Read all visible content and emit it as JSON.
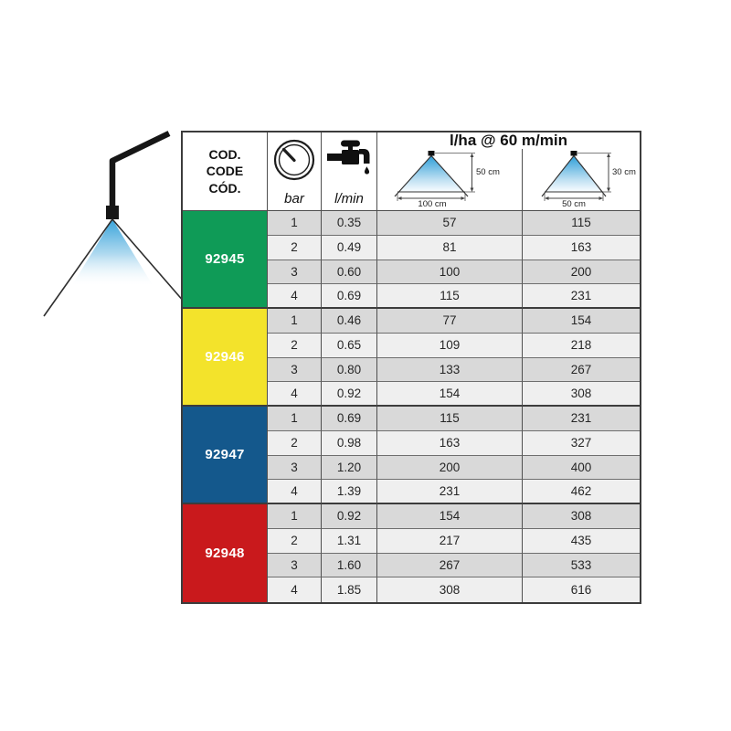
{
  "colors": {
    "green": "#0f9b57",
    "yellow": "#f3e32b",
    "blue": "#14588c",
    "red": "#c9191c",
    "row_dark": "#d9d9d9",
    "row_light": "#efefef",
    "spray_blue": "#2d9ed8"
  },
  "illustration": {
    "name": "spray-nozzle-with-cone"
  },
  "table": {
    "header": {
      "code_lines": [
        "COD.",
        "CODE",
        "CÓD."
      ],
      "pressure_icon": "gauge-icon",
      "pressure_unit": "bar",
      "flow_icon": "tap-icon",
      "flow_unit": "l/min",
      "rate_title": "l/ha @ 60 m/min",
      "diagram_wide": {
        "height_label": "50 cm",
        "width_label": "100 cm"
      },
      "diagram_narrow": {
        "height_label": "30 cm",
        "width_label": "50 cm"
      }
    },
    "groups": [
      {
        "code": "92945",
        "color": "#0f9b57",
        "rows": [
          {
            "bar": "1",
            "lmin": "0.35",
            "lha_100": "57",
            "lha_50": "115"
          },
          {
            "bar": "2",
            "lmin": "0.49",
            "lha_100": "81",
            "lha_50": "163"
          },
          {
            "bar": "3",
            "lmin": "0.60",
            "lha_100": "100",
            "lha_50": "200"
          },
          {
            "bar": "4",
            "lmin": "0.69",
            "lha_100": "115",
            "lha_50": "231"
          }
        ]
      },
      {
        "code": "92946",
        "color": "#f3e32b",
        "rows": [
          {
            "bar": "1",
            "lmin": "0.46",
            "lha_100": "77",
            "lha_50": "154"
          },
          {
            "bar": "2",
            "lmin": "0.65",
            "lha_100": "109",
            "lha_50": "218"
          },
          {
            "bar": "3",
            "lmin": "0.80",
            "lha_100": "133",
            "lha_50": "267"
          },
          {
            "bar": "4",
            "lmin": "0.92",
            "lha_100": "154",
            "lha_50": "308"
          }
        ]
      },
      {
        "code": "92947",
        "color": "#14588c",
        "rows": [
          {
            "bar": "1",
            "lmin": "0.69",
            "lha_100": "115",
            "lha_50": "231"
          },
          {
            "bar": "2",
            "lmin": "0.98",
            "lha_100": "163",
            "lha_50": "327"
          },
          {
            "bar": "3",
            "lmin": "1.20",
            "lha_100": "200",
            "lha_50": "400"
          },
          {
            "bar": "4",
            "lmin": "1.39",
            "lha_100": "231",
            "lha_50": "462"
          }
        ]
      },
      {
        "code": "92948",
        "color": "#c9191c",
        "rows": [
          {
            "bar": "1",
            "lmin": "0.92",
            "lha_100": "154",
            "lha_50": "308"
          },
          {
            "bar": "2",
            "lmin": "1.31",
            "lha_100": "217",
            "lha_50": "435"
          },
          {
            "bar": "3",
            "lmin": "1.60",
            "lha_100": "267",
            "lha_50": "533"
          },
          {
            "bar": "4",
            "lmin": "1.85",
            "lha_100": "308",
            "lha_50": "616"
          }
        ]
      }
    ]
  }
}
